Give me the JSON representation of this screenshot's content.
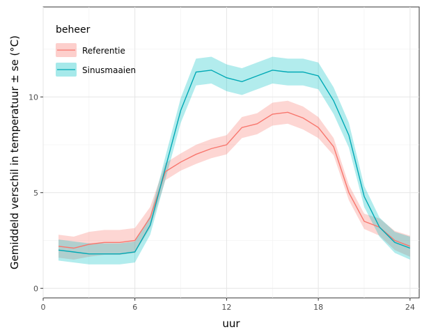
{
  "chart_data": {
    "type": "line",
    "xlabel": "uur",
    "ylabel": "Gemiddeld verschil in temperatuur ± se (°C)",
    "xlim": [
      0,
      24.6
    ],
    "ylim": [
      -0.5,
      14.7
    ],
    "xticks": [
      0,
      6,
      12,
      18,
      24
    ],
    "yticks": [
      0,
      5,
      10
    ],
    "grid": true,
    "legend": {
      "title": "beheer",
      "placement": "top-left"
    },
    "x": [
      1,
      2,
      3,
      4,
      5,
      6,
      7,
      8,
      9,
      10,
      11,
      12,
      13,
      14,
      15,
      16,
      17,
      18,
      19,
      20,
      21,
      22,
      23,
      24
    ],
    "series": [
      {
        "name": "Referentie",
        "color": "#F8766D",
        "fill": "#F8766D",
        "values": [
          2.2,
          2.1,
          2.3,
          2.4,
          2.4,
          2.5,
          3.7,
          6.1,
          6.6,
          7.0,
          7.3,
          7.5,
          8.4,
          8.6,
          9.1,
          9.2,
          8.9,
          8.4,
          7.4,
          5.0,
          3.5,
          3.2,
          2.5,
          2.2
        ],
        "se": [
          0.6,
          0.6,
          0.65,
          0.65,
          0.65,
          0.65,
          0.55,
          0.45,
          0.45,
          0.5,
          0.5,
          0.5,
          0.55,
          0.55,
          0.6,
          0.6,
          0.6,
          0.55,
          0.45,
          0.4,
          0.4,
          0.45,
          0.5,
          0.55
        ]
      },
      {
        "name": "Sinusmaaien",
        "color": "#00A9B5",
        "fill": "#00BFC4",
        "values": [
          2.0,
          1.9,
          1.8,
          1.8,
          1.8,
          1.9,
          3.3,
          6.3,
          9.3,
          11.3,
          11.4,
          11.0,
          10.8,
          11.1,
          11.4,
          11.3,
          11.3,
          11.1,
          9.8,
          8.0,
          4.8,
          3.2,
          2.4,
          2.1
        ],
        "se": [
          0.55,
          0.55,
          0.55,
          0.55,
          0.55,
          0.55,
          0.5,
          0.6,
          0.65,
          0.7,
          0.7,
          0.7,
          0.7,
          0.7,
          0.7,
          0.7,
          0.7,
          0.7,
          0.7,
          0.65,
          0.55,
          0.5,
          0.55,
          0.6
        ]
      }
    ]
  }
}
